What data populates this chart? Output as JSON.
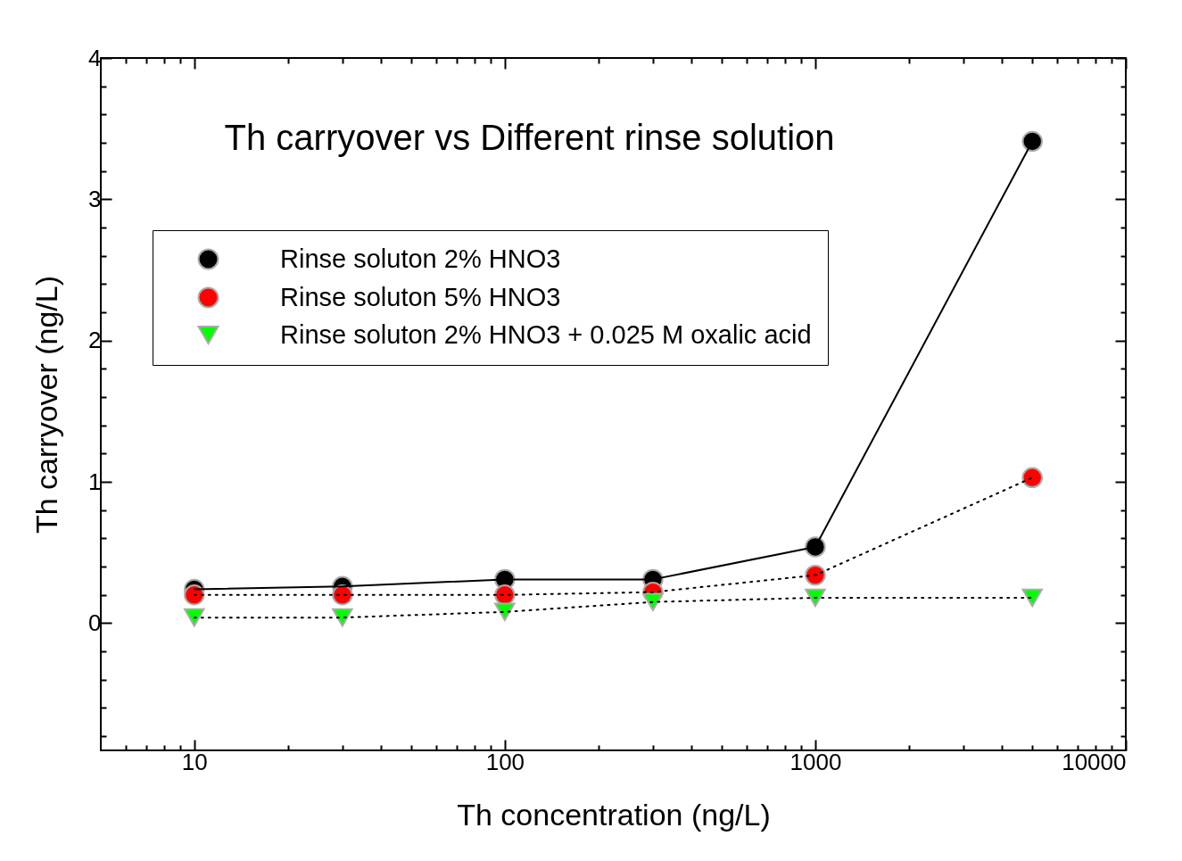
{
  "chart_data": {
    "type": "line",
    "title": "Th carryover vs Different rinse solution",
    "xlabel": "Th concentration (ng/L)",
    "ylabel": "Th carryover (ng/L)",
    "x": [
      10,
      30,
      100,
      300,
      1000,
      5000
    ],
    "series": [
      {
        "name": "Rinse soluton 2% HNO3",
        "color": "#000000",
        "marker": "circle",
        "line_style": "solid",
        "values": [
          0.24,
          0.26,
          0.31,
          0.31,
          0.54,
          3.41
        ]
      },
      {
        "name": "Rinse soluton 5% HNO3",
        "color": "#ff0000",
        "marker": "circle",
        "line_style": "dotted",
        "values": [
          0.2,
          0.2,
          0.2,
          0.22,
          0.34,
          1.03
        ]
      },
      {
        "name": "Rinse soluton 2% HNO3 + 0.025 M oxalic acid",
        "color": "#00ff00",
        "marker": "triangle",
        "line_style": "dotted",
        "values": [
          0.04,
          0.04,
          0.08,
          0.15,
          0.18,
          0.18
        ]
      }
    ],
    "log": "x",
    "xlim": [
      5,
      10000
    ],
    "ylim": [
      -0.9,
      4
    ],
    "xticks": [
      {
        "value": 6,
        "label": null
      },
      {
        "value": 7,
        "label": null
      },
      {
        "value": 8,
        "label": null
      },
      {
        "value": 9,
        "label": null
      },
      10,
      {
        "value": 20,
        "label": null
      },
      {
        "value": 30,
        "label": null
      },
      {
        "value": 40,
        "label": null
      },
      {
        "value": 50,
        "label": null
      },
      {
        "value": 60,
        "label": null
      },
      {
        "value": 70,
        "label": null
      },
      {
        "value": 80,
        "label": null
      },
      {
        "value": 90,
        "label": null
      },
      100,
      {
        "value": 200,
        "label": null
      },
      {
        "value": 300,
        "label": null
      },
      {
        "value": 400,
        "label": null
      },
      {
        "value": 500,
        "label": null
      },
      {
        "value": 600,
        "label": null
      },
      {
        "value": 700,
        "label": null
      },
      {
        "value": 800,
        "label": null
      },
      {
        "value": 900,
        "label": null
      },
      1000,
      {
        "value": 2000,
        "label": null
      },
      {
        "value": 3000,
        "label": null
      },
      {
        "value": 4000,
        "label": null
      },
      {
        "value": 5000,
        "label": null
      },
      {
        "value": 6000,
        "label": null
      },
      {
        "value": 7000,
        "label": null
      },
      {
        "value": 8000,
        "label": null
      },
      {
        "value": 9000,
        "label": null
      },
      10000
    ],
    "yticks": [
      {
        "value": -0.8,
        "label": null
      },
      {
        "value": -0.6,
        "label": null
      },
      {
        "value": -0.4,
        "label": null
      },
      {
        "value": -0.2,
        "label": null
      },
      0,
      {
        "value": 0.2,
        "label": null
      },
      {
        "value": 0.4,
        "label": null
      },
      {
        "value": 0.6,
        "label": null
      },
      {
        "value": 0.8,
        "label": null
      },
      1,
      {
        "value": 1.2,
        "label": null
      },
      {
        "value": 1.4,
        "label": null
      },
      {
        "value": 1.6,
        "label": null
      },
      {
        "value": 1.8,
        "label": null
      },
      2,
      {
        "value": 2.2,
        "label": null
      },
      {
        "value": 2.4,
        "label": null
      },
      {
        "value": 2.6,
        "label": null
      },
      {
        "value": 2.8,
        "label": null
      },
      3,
      {
        "value": 3.2,
        "label": null
      },
      {
        "value": 3.4,
        "label": null
      },
      {
        "value": 3.6,
        "label": null
      },
      {
        "value": 3.8,
        "label": null
      },
      4
    ],
    "grid": false,
    "legend": "top left"
  }
}
